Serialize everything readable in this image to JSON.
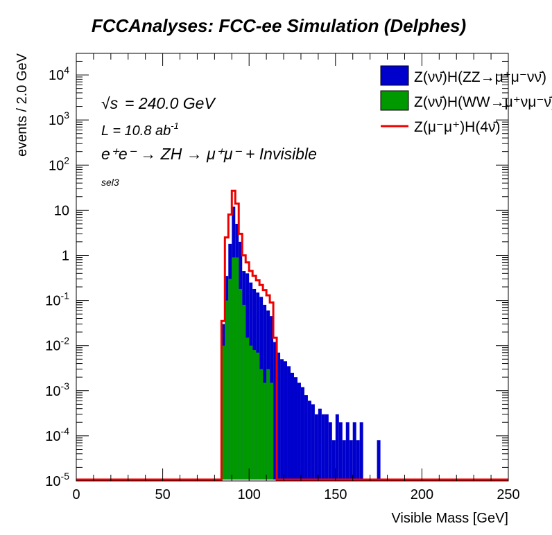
{
  "chart_data": {
    "type": "histogram",
    "title": "FCCAnalyses: FCC-ee Simulation (Delphes)",
    "xlabel": "Visible Mass [GeV]",
    "ylabel": "events / 2.0 GeV",
    "xlim": [
      0,
      250
    ],
    "ylim": [
      1e-05,
      30000
    ],
    "y_scale": "log",
    "bin_width": 2.0,
    "x_ticks": [
      "0",
      "50",
      "100",
      "150",
      "200",
      "250"
    ],
    "y_ticks": [
      {
        "base": "10",
        "exp": "-5",
        "value": 1e-05
      },
      {
        "base": "10",
        "exp": "-4",
        "value": 0.0001
      },
      {
        "base": "10",
        "exp": "-3",
        "value": 0.001
      },
      {
        "base": "10",
        "exp": "-2",
        "value": 0.01
      },
      {
        "base": "10",
        "exp": "-1",
        "value": 0.1
      },
      {
        "base": "1",
        "exp": "",
        "value": 1
      },
      {
        "base": "10",
        "exp": "",
        "value": 10
      },
      {
        "base": "10",
        "exp": "2",
        "value": 100
      },
      {
        "base": "10",
        "exp": "3",
        "value": 1000
      },
      {
        "base": "10",
        "exp": "4",
        "value": 10000
      }
    ],
    "annotations": {
      "sqrt_s": "= 240.0 GeV",
      "sqrt_s_symbol": "√s",
      "lumi": "L = 10.8 ab",
      "lumi_exp": "-1",
      "process": "e⁺e⁻ → ZH → μ⁺μ⁻ + Invisible",
      "selection": "sel3"
    },
    "legend_position": "top-right",
    "series": [
      {
        "name": "Z(νν̄)H(ZZ→μ⁺μ⁻νν̄)",
        "style": "filled",
        "color": "#0000cc",
        "edges": [
          84,
          86,
          88,
          90,
          92,
          94,
          96,
          98,
          100,
          102,
          104,
          106,
          108,
          110,
          112,
          114,
          116,
          118,
          120,
          122,
          124,
          126,
          128,
          130,
          132,
          134,
          136,
          138,
          140,
          142,
          144,
          146,
          148,
          150,
          152,
          154,
          156,
          158,
          160,
          162,
          164,
          166,
          174,
          176
        ],
        "values": [
          0.03,
          0.35,
          1.8,
          12,
          5,
          2,
          0.45,
          0.4,
          0.25,
          0.18,
          0.15,
          0.12,
          0.08,
          0.06,
          0.045,
          0.012,
          0.007,
          0.005,
          0.0045,
          0.0035,
          0.0025,
          0.002,
          0.0015,
          0.0012,
          0.0008,
          0.0006,
          0.0005,
          0.0003,
          0.0004,
          0.0003,
          0.0003,
          0.0002,
          8e-05,
          0.0003,
          0.0002,
          8e-05,
          0.0002,
          8e-05,
          0.0002,
          8e-05,
          0.0002,
          1e-05,
          8e-05
        ]
      },
      {
        "name": "Z(νν̄)H(WW→μ⁺νμ⁻ν̄)",
        "style": "filled",
        "color": "#009900",
        "edges": [
          84,
          86,
          88,
          90,
          92,
          94,
          96,
          98,
          100,
          102,
          104,
          106,
          108,
          110,
          112,
          114
        ],
        "values": [
          0.01,
          0.1,
          0.3,
          0.9,
          0.9,
          0.18,
          0.08,
          0.015,
          0.01,
          0.008,
          0.007,
          0.003,
          0.0015,
          0.003,
          0.0015
        ]
      },
      {
        "name": "Z(μ⁻μ⁺)H(4ν̄)",
        "style": "line",
        "color": "#ee0000",
        "edges": [
          84,
          86,
          88,
          90,
          92,
          94,
          96,
          98,
          100,
          102,
          104,
          106,
          108,
          110,
          112,
          114,
          116
        ],
        "values": [
          0.035,
          2.5,
          8,
          27,
          14,
          3,
          1,
          0.7,
          0.45,
          0.35,
          0.28,
          0.22,
          0.17,
          0.13,
          0.09,
          0.015
        ]
      }
    ],
    "colors": {
      "frame": "#000000",
      "background": "#ffffff"
    }
  }
}
